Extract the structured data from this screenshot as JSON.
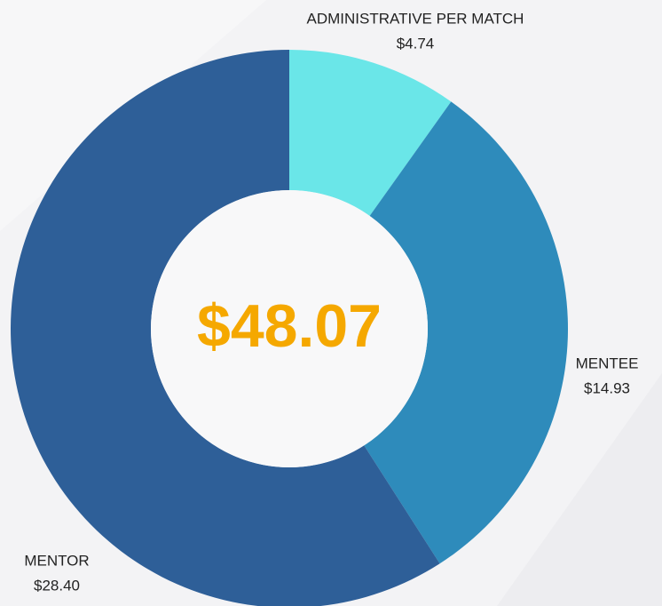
{
  "chart_data": {
    "type": "donut",
    "categories": [
      "ADMINISTRATIVE PER MATCH",
      "MENTEE",
      "MENTOR"
    ],
    "values": [
      4.74,
      14.93,
      28.4
    ],
    "value_labels": [
      "$4.74",
      "$14.93",
      "$28.40"
    ],
    "colors": [
      "#6ae6e8",
      "#2e8bbb",
      "#2e5f98"
    ],
    "center_text": "$48.07",
    "center_color": "#f5a800"
  }
}
